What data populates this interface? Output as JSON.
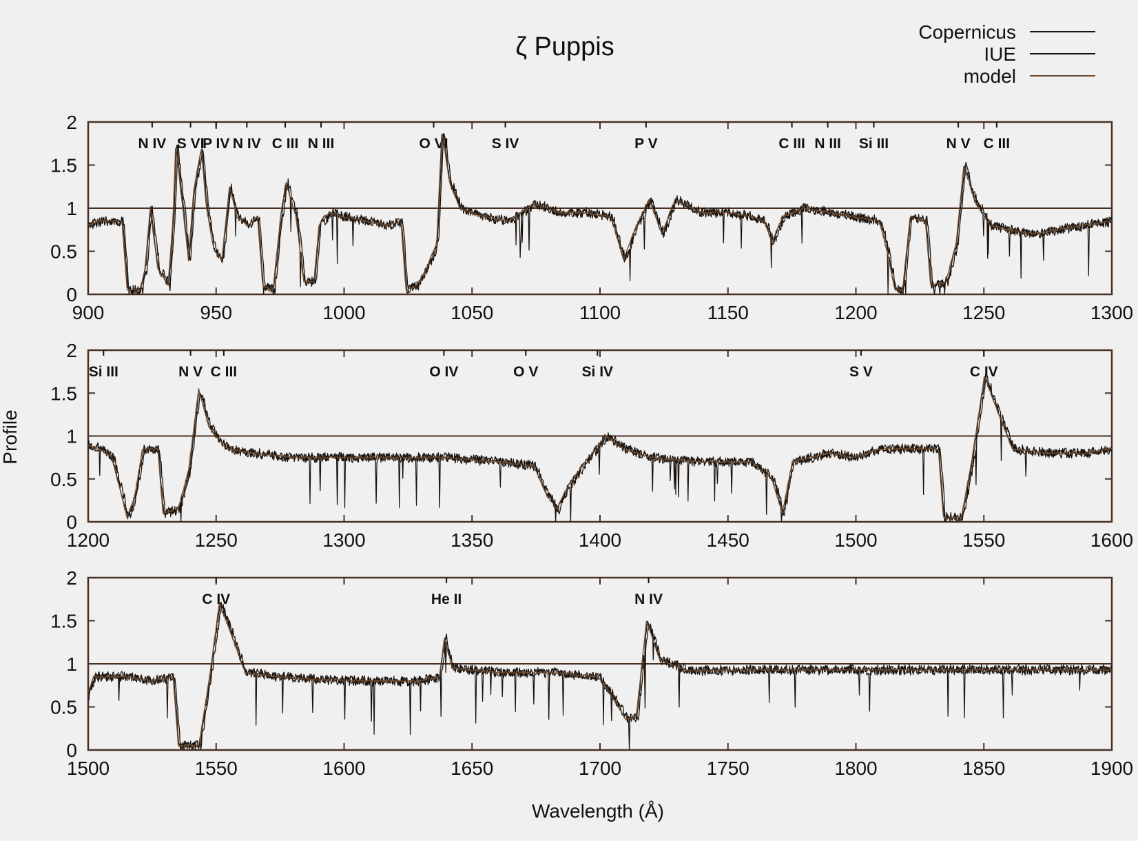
{
  "chart_data": {
    "type": "line",
    "title": "ζ Puppis",
    "xlabel": "Wavelength (Å)",
    "ylabel": "Profile",
    "legend": {
      "placement": "top-right",
      "entries": [
        "Copernicus",
        "IUE",
        "model"
      ]
    },
    "colors": {
      "observed": "#1a120c",
      "model": "#6a4a30",
      "frame": "#4a3020",
      "background": "#f0f0f0"
    },
    "series": [
      {
        "name": "Copernicus"
      },
      {
        "name": "IUE"
      },
      {
        "name": "model"
      }
    ],
    "reference_line": {
      "y": 1
    },
    "panels": [
      {
        "xlim": [
          900,
          1300
        ],
        "ylim": [
          0,
          2
        ],
        "xticks": [
          "900",
          "950",
          "1000",
          "1050",
          "1100",
          "1150",
          "1200",
          "1250",
          "1300"
        ],
        "yticks": [
          "0",
          "0.5",
          "1",
          "1.5",
          "2"
        ],
        "ion_labels": [
          {
            "x": 925,
            "text": "N IV"
          },
          {
            "x": 940,
            "text": "S VI"
          },
          {
            "x": 950,
            "text": "P IV"
          },
          {
            "x": 962,
            "text": "N IV"
          },
          {
            "x": 977,
            "text": "C III"
          },
          {
            "x": 991,
            "text": "N III"
          },
          {
            "x": 1035,
            "text": "O VI"
          },
          {
            "x": 1063,
            "text": "S IV"
          },
          {
            "x": 1118,
            "text": "P V"
          },
          {
            "x": 1175,
            "text": "C III"
          },
          {
            "x": 1189,
            "text": "N III"
          },
          {
            "x": 1207,
            "text": "Si III"
          },
          {
            "x": 1240,
            "text": "N V"
          },
          {
            "x": 1255,
            "text": "C III"
          }
        ],
        "continuum": [
          [
            900,
            0.8
          ],
          [
            905,
            0.85
          ],
          [
            914,
            0.85
          ],
          [
            916,
            0.05
          ],
          [
            921,
            0.05
          ],
          [
            923,
            0.3
          ],
          [
            925,
            1.0
          ],
          [
            928,
            0.3
          ],
          [
            932,
            0.1
          ],
          [
            934,
            0.9
          ],
          [
            935,
            1.75
          ],
          [
            937,
            1.2
          ],
          [
            940,
            0.4
          ],
          [
            942,
            1.2
          ],
          [
            945,
            1.7
          ],
          [
            947,
            1.0
          ],
          [
            950,
            0.5
          ],
          [
            953,
            0.4
          ],
          [
            956,
            1.25
          ],
          [
            959,
            0.9
          ],
          [
            963,
            0.8
          ],
          [
            967,
            0.9
          ],
          [
            969,
            0.1
          ],
          [
            973,
            0.05
          ],
          [
            976,
            0.9
          ],
          [
            978,
            1.3
          ],
          [
            982,
            0.9
          ],
          [
            985,
            0.15
          ],
          [
            989,
            0.15
          ],
          [
            991,
            0.8
          ],
          [
            995,
            0.95
          ],
          [
            1000,
            0.9
          ],
          [
            1010,
            0.85
          ],
          [
            1018,
            0.8
          ],
          [
            1023,
            0.85
          ],
          [
            1025,
            0.05
          ],
          [
            1029,
            0.1
          ],
          [
            1033,
            0.3
          ],
          [
            1037,
            0.6
          ],
          [
            1039,
            1.9
          ],
          [
            1042,
            1.3
          ],
          [
            1046,
            1.0
          ],
          [
            1055,
            0.9
          ],
          [
            1065,
            0.85
          ],
          [
            1075,
            1.05
          ],
          [
            1085,
            0.95
          ],
          [
            1095,
            0.95
          ],
          [
            1105,
            0.9
          ],
          [
            1110,
            0.4
          ],
          [
            1115,
            0.8
          ],
          [
            1120,
            1.1
          ],
          [
            1125,
            0.7
          ],
          [
            1130,
            1.1
          ],
          [
            1140,
            0.95
          ],
          [
            1150,
            0.95
          ],
          [
            1160,
            0.9
          ],
          [
            1165,
            0.85
          ],
          [
            1168,
            0.6
          ],
          [
            1172,
            0.9
          ],
          [
            1180,
            1.0
          ],
          [
            1190,
            0.95
          ],
          [
            1200,
            0.9
          ],
          [
            1210,
            0.85
          ],
          [
            1213,
            0.5
          ],
          [
            1216,
            0.05
          ],
          [
            1219,
            0.05
          ],
          [
            1222,
            0.9
          ],
          [
            1228,
            0.85
          ],
          [
            1230,
            0.1
          ],
          [
            1236,
            0.15
          ],
          [
            1240,
            0.6
          ],
          [
            1243,
            1.5
          ],
          [
            1247,
            1.1
          ],
          [
            1253,
            0.8
          ],
          [
            1260,
            0.75
          ],
          [
            1270,
            0.7
          ],
          [
            1280,
            0.75
          ],
          [
            1290,
            0.8
          ],
          [
            1300,
            0.85
          ]
        ]
      },
      {
        "xlim": [
          1200,
          1600
        ],
        "ylim": [
          0,
          2
        ],
        "xticks": [
          "1200",
          "1250",
          "1300",
          "1350",
          "1400",
          "1450",
          "1500",
          "1550",
          "1600"
        ],
        "yticks": [
          "0",
          "0.5",
          "1",
          "1.5",
          "2"
        ],
        "ion_labels": [
          {
            "x": 1206,
            "text": "Si III"
          },
          {
            "x": 1240,
            "text": "N V"
          },
          {
            "x": 1253,
            "text": "C III"
          },
          {
            "x": 1339,
            "text": "O IV"
          },
          {
            "x": 1371,
            "text": "O V"
          },
          {
            "x": 1399,
            "text": "Si IV"
          },
          {
            "x": 1502,
            "text": "S V"
          },
          {
            "x": 1550,
            "text": "C IV"
          }
        ],
        "continuum": [
          [
            1200,
            0.9
          ],
          [
            1205,
            0.85
          ],
          [
            1210,
            0.75
          ],
          [
            1213,
            0.4
          ],
          [
            1216,
            0.05
          ],
          [
            1219,
            0.3
          ],
          [
            1222,
            0.85
          ],
          [
            1228,
            0.85
          ],
          [
            1230,
            0.1
          ],
          [
            1236,
            0.15
          ],
          [
            1240,
            0.6
          ],
          [
            1244,
            1.55
          ],
          [
            1248,
            1.1
          ],
          [
            1255,
            0.85
          ],
          [
            1265,
            0.8
          ],
          [
            1280,
            0.75
          ],
          [
            1300,
            0.75
          ],
          [
            1320,
            0.75
          ],
          [
            1340,
            0.75
          ],
          [
            1360,
            0.7
          ],
          [
            1375,
            0.65
          ],
          [
            1380,
            0.3
          ],
          [
            1384,
            0.15
          ],
          [
            1388,
            0.4
          ],
          [
            1395,
            0.7
          ],
          [
            1403,
            1.0
          ],
          [
            1410,
            0.85
          ],
          [
            1420,
            0.75
          ],
          [
            1440,
            0.7
          ],
          [
            1460,
            0.7
          ],
          [
            1468,
            0.5
          ],
          [
            1472,
            0.1
          ],
          [
            1476,
            0.7
          ],
          [
            1490,
            0.8
          ],
          [
            1500,
            0.75
          ],
          [
            1510,
            0.85
          ],
          [
            1520,
            0.85
          ],
          [
            1533,
            0.85
          ],
          [
            1535,
            0.05
          ],
          [
            1542,
            0.05
          ],
          [
            1546,
            0.7
          ],
          [
            1551,
            1.7
          ],
          [
            1556,
            1.3
          ],
          [
            1562,
            0.85
          ],
          [
            1575,
            0.8
          ],
          [
            1590,
            0.8
          ],
          [
            1600,
            0.85
          ]
        ]
      },
      {
        "xlim": [
          1500,
          1900
        ],
        "ylim": [
          0,
          2
        ],
        "xticks": [
          "1500",
          "1550",
          "1600",
          "1650",
          "1700",
          "1750",
          "1800",
          "1850",
          "1900"
        ],
        "yticks": [
          "0",
          "0.5",
          "1",
          "1.5",
          "2"
        ],
        "ion_labels": [
          {
            "x": 1550,
            "text": "C IV"
          },
          {
            "x": 1640,
            "text": "He II"
          },
          {
            "x": 1719,
            "text": "N IV"
          }
        ],
        "continuum": [
          [
            1500,
            0.6
          ],
          [
            1503,
            0.85
          ],
          [
            1515,
            0.85
          ],
          [
            1525,
            0.8
          ],
          [
            1534,
            0.85
          ],
          [
            1536,
            0.05
          ],
          [
            1544,
            0.05
          ],
          [
            1548,
            0.8
          ],
          [
            1552,
            1.7
          ],
          [
            1556,
            1.4
          ],
          [
            1562,
            0.9
          ],
          [
            1575,
            0.85
          ],
          [
            1590,
            0.82
          ],
          [
            1610,
            0.8
          ],
          [
            1630,
            0.8
          ],
          [
            1638,
            0.85
          ],
          [
            1640,
            1.3
          ],
          [
            1643,
            0.95
          ],
          [
            1660,
            0.9
          ],
          [
            1680,
            0.9
          ],
          [
            1700,
            0.85
          ],
          [
            1706,
            0.6
          ],
          [
            1711,
            0.35
          ],
          [
            1715,
            0.4
          ],
          [
            1719,
            1.5
          ],
          [
            1724,
            1.05
          ],
          [
            1735,
            0.92
          ],
          [
            1760,
            0.93
          ],
          [
            1790,
            0.93
          ],
          [
            1820,
            0.93
          ],
          [
            1850,
            0.93
          ],
          [
            1880,
            0.93
          ],
          [
            1900,
            0.93
          ]
        ]
      }
    ]
  }
}
